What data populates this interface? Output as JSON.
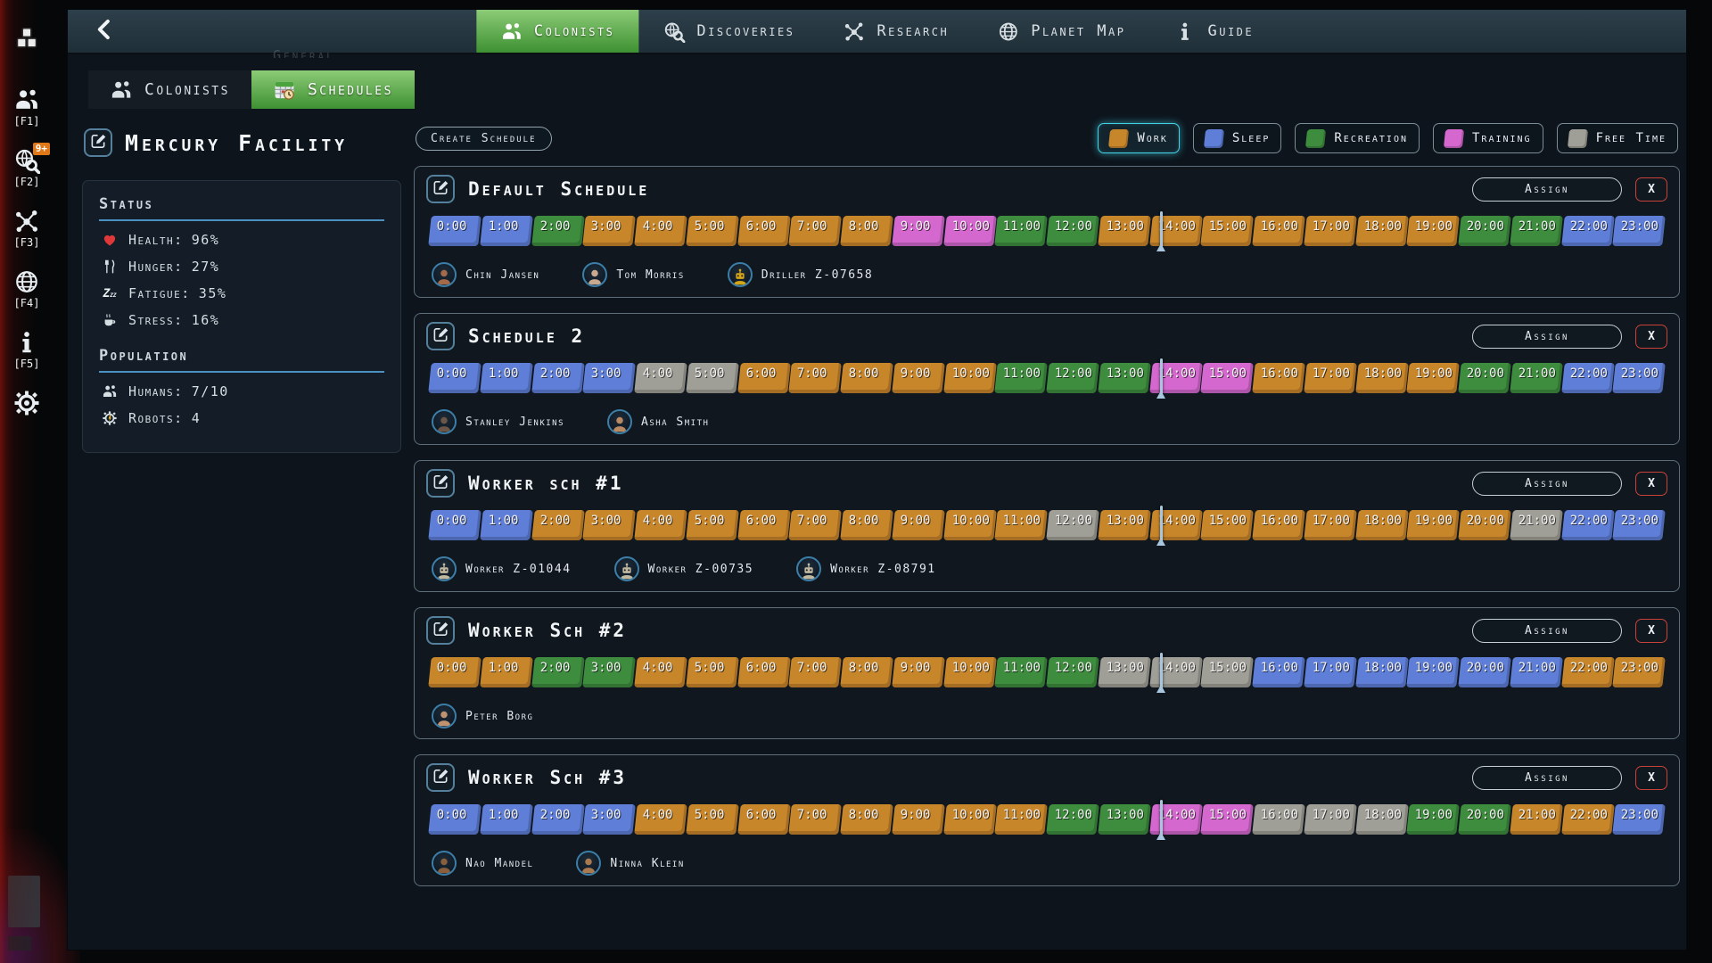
{
  "top_nav": {
    "tabs": [
      {
        "label": "Colonists",
        "icon": "people",
        "active": true
      },
      {
        "label": "Discoveries",
        "icon": "search-globe",
        "active": false
      },
      {
        "label": "Research",
        "icon": "network",
        "active": false
      },
      {
        "label": "Planet Map",
        "icon": "globe",
        "active": false
      },
      {
        "label": "Guide",
        "icon": "info",
        "active": false
      }
    ]
  },
  "background": {
    "clipped_label": "General"
  },
  "left_toolbar": {
    "items": [
      {
        "icon": "blocks",
        "hotkey": ""
      },
      {
        "icon": "people",
        "hotkey": "[F1]"
      },
      {
        "icon": "search-globe",
        "hotkey": "[F2]",
        "badge": "9+"
      },
      {
        "icon": "network",
        "hotkey": "[F3]"
      },
      {
        "icon": "globe",
        "hotkey": "[F4]"
      },
      {
        "icon": "info",
        "hotkey": "[F5]"
      },
      {
        "icon": "gear",
        "hotkey": ""
      }
    ]
  },
  "sub_tabs": [
    {
      "label": "Colonists",
      "icon": "people",
      "active": false
    },
    {
      "label": "Schedules",
      "icon": "calendar",
      "active": true
    }
  ],
  "sidebar": {
    "title": "Mercury Facility",
    "status": {
      "heading": "Status",
      "items": [
        {
          "icon": "heart",
          "label": "Health:",
          "value": "96%"
        },
        {
          "icon": "utensils",
          "label": "Hunger:",
          "value": "27%"
        },
        {
          "icon": "zzz",
          "label": "Fatigue:",
          "value": "35%"
        },
        {
          "icon": "stress",
          "label": "Stress:",
          "value": "16%"
        }
      ]
    },
    "population": {
      "heading": "Population",
      "items": [
        {
          "icon": "people",
          "label": "Humans:",
          "value": "7/10"
        },
        {
          "icon": "robot",
          "label": "Robots:",
          "value": "4"
        }
      ]
    }
  },
  "toolbar": {
    "create_label": "Create Schedule"
  },
  "buttons": {
    "assign": "Assign",
    "delete": "X"
  },
  "activity_colors": {
    "work": "#c8862b",
    "sleep": "#5f7ed8",
    "recreation": "#3e8c3e",
    "training": "#d468ce",
    "free": "#a09f97"
  },
  "legend": [
    {
      "label": "Work",
      "key": "work",
      "active": true
    },
    {
      "label": "Sleep",
      "key": "sleep",
      "active": false
    },
    {
      "label": "Recreation",
      "key": "recreation",
      "active": false
    },
    {
      "label": "Training",
      "key": "training",
      "active": false
    },
    {
      "label": "Free Time",
      "key": "free",
      "active": false
    }
  ],
  "timeline": {
    "hour_labels": [
      "0:00",
      "1:00",
      "2:00",
      "3:00",
      "4:00",
      "5:00",
      "6:00",
      "7:00",
      "8:00",
      "9:00",
      "10:00",
      "11:00",
      "12:00",
      "13:00",
      "14:00",
      "15:00",
      "16:00",
      "17:00",
      "18:00",
      "19:00",
      "20:00",
      "21:00",
      "22:00",
      "23:00"
    ],
    "marker_percent": 59.2
  },
  "schedules": [
    {
      "title": "Default Schedule",
      "hours": [
        "sleep",
        "sleep",
        "recreation",
        "work",
        "work",
        "work",
        "work",
        "work",
        "work",
        "training",
        "training",
        "recreation",
        "recreation",
        "work",
        "work",
        "work",
        "work",
        "work",
        "work",
        "work",
        "recreation",
        "recreation",
        "sleep",
        "sleep"
      ],
      "colonists": [
        {
          "name": "Chin Jansen",
          "kind": "human",
          "color": "#a56a4a"
        },
        {
          "name": "Tom Morris",
          "kind": "human",
          "color": "#c9a98f"
        },
        {
          "name": "Driller Z-07658",
          "kind": "robot",
          "color": "#d4a517"
        }
      ]
    },
    {
      "title": "Schedule 2",
      "hours": [
        "sleep",
        "sleep",
        "sleep",
        "sleep",
        "free",
        "free",
        "work",
        "work",
        "work",
        "work",
        "work",
        "recreation",
        "recreation",
        "recreation",
        "training",
        "training",
        "work",
        "work",
        "work",
        "work",
        "recreation",
        "recreation",
        "sleep",
        "sleep"
      ],
      "colonists": [
        {
          "name": "Stanley Jenkins",
          "kind": "human",
          "color": "#6b5647"
        },
        {
          "name": "Asha Smith",
          "kind": "human",
          "color": "#b98a62"
        }
      ]
    },
    {
      "title": "Worker sch #1",
      "hours": [
        "sleep",
        "sleep",
        "work",
        "work",
        "work",
        "work",
        "work",
        "work",
        "work",
        "work",
        "work",
        "work",
        "free",
        "work",
        "work",
        "work",
        "work",
        "work",
        "work",
        "work",
        "work",
        "free",
        "sleep",
        "sleep"
      ],
      "colonists": [
        {
          "name": "Worker Z-01044",
          "kind": "robot",
          "color": "#c0b8a0"
        },
        {
          "name": "Worker Z-00735",
          "kind": "robot",
          "color": "#c0b8a0"
        },
        {
          "name": "Worker Z-08791",
          "kind": "robot",
          "color": "#c0b8a0"
        }
      ]
    },
    {
      "title": "Worker Sch #2",
      "hours": [
        "work",
        "work",
        "recreation",
        "recreation",
        "work",
        "work",
        "work",
        "work",
        "work",
        "work",
        "work",
        "recreation",
        "recreation",
        "free",
        "free",
        "free",
        "sleep",
        "sleep",
        "sleep",
        "sleep",
        "sleep",
        "sleep",
        "work",
        "work"
      ],
      "colonists": [
        {
          "name": "Peter Borg",
          "kind": "human",
          "color": "#bf9270"
        }
      ]
    },
    {
      "title": "Worker Sch #3",
      "hours": [
        "sleep",
        "sleep",
        "sleep",
        "sleep",
        "work",
        "work",
        "work",
        "work",
        "work",
        "work",
        "work",
        "work",
        "recreation",
        "recreation",
        "training",
        "training",
        "free",
        "free",
        "free",
        "recreation",
        "recreation",
        "work",
        "work",
        "sleep"
      ],
      "colonists": [
        {
          "name": "Nao Mandel",
          "kind": "human",
          "color": "#8a5f3e"
        },
        {
          "name": "Ninna Klein",
          "kind": "human",
          "color": "#a97950"
        }
      ]
    }
  ]
}
